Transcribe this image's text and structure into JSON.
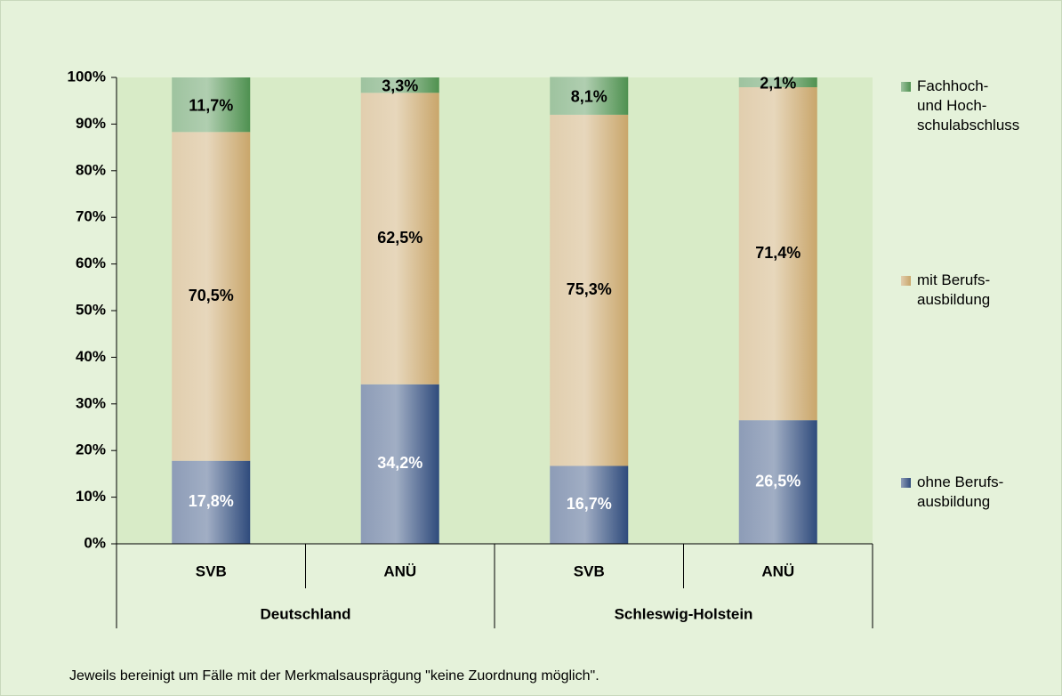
{
  "chart_data": {
    "type": "stacked_bar",
    "categories": [
      "SVB",
      "ANÜ",
      "SVB",
      "ANÜ"
    ],
    "groups": [
      "Deutschland",
      "Schleswig-Holstein"
    ],
    "series": [
      {
        "name": "ohne Berufs-\nausbildung",
        "color": "#2f4b7c",
        "label_color": "#ffffff",
        "values": [
          17.8,
          34.2,
          16.7,
          26.5
        ],
        "value_labels": [
          "17,8%",
          "34,2%",
          "16,7%",
          "26,5%"
        ]
      },
      {
        "name": "mit Berufs-\nausbildung",
        "color": "#c9a66b",
        "label_color": "#000000",
        "values": [
          70.5,
          62.5,
          75.3,
          71.4
        ],
        "value_labels": [
          "70,5%",
          "62,5%",
          "75,3%",
          "71,4%"
        ]
      },
      {
        "name": "Fachhoch-\nund Hoch-\nschulabschluss",
        "color": "#4f9150",
        "label_color": "#000000",
        "values": [
          11.7,
          3.3,
          8.1,
          2.1
        ],
        "value_labels": [
          "11,7%",
          "3,3%",
          "8,1%",
          "2,1%"
        ]
      }
    ],
    "ylim": [
      0,
      100
    ],
    "yticks": [
      {
        "value": 0,
        "label": "0%"
      },
      {
        "value": 10,
        "label": "10%"
      },
      {
        "value": 20,
        "label": "20%"
      },
      {
        "value": 30,
        "label": "30%"
      },
      {
        "value": 40,
        "label": "40%"
      },
      {
        "value": 50,
        "label": "50%"
      },
      {
        "value": 60,
        "label": "60%"
      },
      {
        "value": 70,
        "label": "70%"
      },
      {
        "value": 80,
        "label": "80%"
      },
      {
        "value": 90,
        "label": "90%"
      },
      {
        "value": 100,
        "label": "100%"
      }
    ],
    "legend": "right",
    "footnote": "Jeweils bereinigt um Fälle mit der Merkmalsausprägung \"keine Zuordnung möglich\"."
  }
}
